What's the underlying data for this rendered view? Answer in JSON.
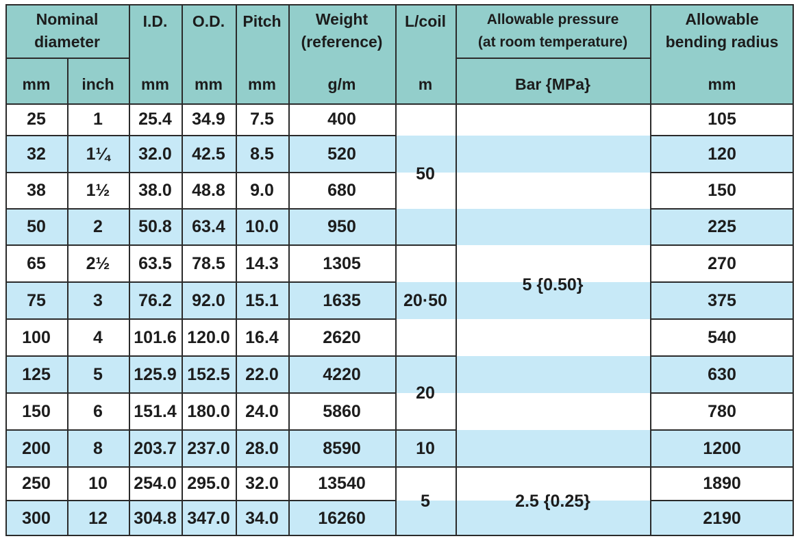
{
  "colors": {
    "header_bg": "#93cecb",
    "stripe_bg": "#c7e9f7",
    "row_bg": "#ffffff",
    "grid": "#2a2a2a",
    "text": "#1c1c1c"
  },
  "headers": {
    "nominal_diameter": "Nominal\ndiameter",
    "id": "I.D.",
    "od": "O.D.",
    "pitch": "Pitch",
    "weight": "Weight\n(reference)",
    "l_coil": "L/coil",
    "allowable_pressure": "Allowable pressure\n(at room temperature)",
    "allowable_bending_radius": "Allowable\nbending radius"
  },
  "units": {
    "nominal_mm": "mm",
    "nominal_inch": "inch",
    "id": "mm",
    "od": "mm",
    "pitch": "mm",
    "weight": "g/m",
    "l_coil": "m",
    "pressure": "Bar {MPa}",
    "bending_radius": "mm"
  },
  "rows": [
    {
      "mm": "25",
      "inch": "1",
      "id": "25.4",
      "od": "34.9",
      "pitch": "7.5",
      "weight": "400",
      "radius": "105"
    },
    {
      "mm": "32",
      "inch": "1¼",
      "id": "32.0",
      "od": "42.5",
      "pitch": "8.5",
      "weight": "520",
      "radius": "120"
    },
    {
      "mm": "38",
      "inch": "1½",
      "id": "38.0",
      "od": "48.8",
      "pitch": "9.0",
      "weight": "680",
      "radius": "150"
    },
    {
      "mm": "50",
      "inch": "2",
      "id": "50.8",
      "od": "63.4",
      "pitch": "10.0",
      "weight": "950",
      "radius": "225"
    },
    {
      "mm": "65",
      "inch": "2½",
      "id": "63.5",
      "od": "78.5",
      "pitch": "14.3",
      "weight": "1305",
      "radius": "270"
    },
    {
      "mm": "75",
      "inch": "3",
      "id": "76.2",
      "od": "92.0",
      "pitch": "15.1",
      "weight": "1635",
      "radius": "375"
    },
    {
      "mm": "100",
      "inch": "4",
      "id": "101.6",
      "od": "120.0",
      "pitch": "16.4",
      "weight": "2620",
      "radius": "540"
    },
    {
      "mm": "125",
      "inch": "5",
      "id": "125.9",
      "od": "152.5",
      "pitch": "22.0",
      "weight": "4220",
      "radius": "630"
    },
    {
      "mm": "150",
      "inch": "6",
      "id": "151.4",
      "od": "180.0",
      "pitch": "24.0",
      "weight": "5860",
      "radius": "780"
    },
    {
      "mm": "200",
      "inch": "8",
      "id": "203.7",
      "od": "237.0",
      "pitch": "28.0",
      "weight": "8590",
      "radius": "1200"
    },
    {
      "mm": "250",
      "inch": "10",
      "id": "254.0",
      "od": "295.0",
      "pitch": "32.0",
      "weight": "13540",
      "radius": "1890"
    },
    {
      "mm": "300",
      "inch": "12",
      "id": "304.8",
      "od": "347.0",
      "pitch": "34.0",
      "weight": "16260",
      "radius": "2190"
    }
  ],
  "l_coil_groups": [
    {
      "value": "50",
      "rows": [
        0,
        3
      ]
    },
    {
      "value": "20·50",
      "rows": [
        4,
        6
      ]
    },
    {
      "value": "20",
      "rows": [
        7,
        8
      ]
    },
    {
      "value": "10",
      "rows": [
        9,
        9
      ]
    },
    {
      "value": "5",
      "rows": [
        10,
        11
      ]
    }
  ],
  "pressure_groups": [
    {
      "value": "5 {0.50}",
      "rows": [
        0,
        9
      ]
    },
    {
      "value": "2.5 {0.25}",
      "rows": [
        10,
        11
      ]
    }
  ]
}
